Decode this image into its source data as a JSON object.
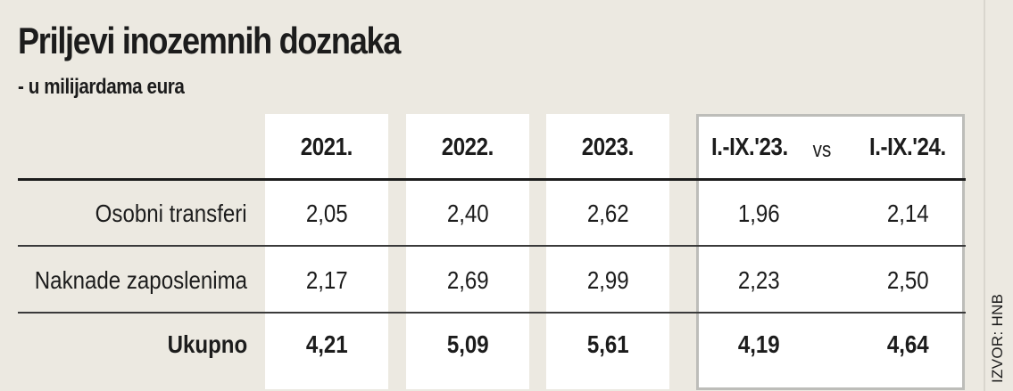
{
  "title": "Priljevi inozemnih doznaka",
  "subtitle": "- u milijardama eura",
  "columns": [
    "2021.",
    "2022.",
    "2023.",
    "I.-IX.'23.",
    "I.-IX.'24."
  ],
  "vs_label": "vs",
  "rows": [
    {
      "label": "Osobni transferi",
      "values": [
        "2,05",
        "2,40",
        "2,62",
        "1,96",
        "2,14"
      ]
    },
    {
      "label": "Naknade zaposlenima",
      "values": [
        "2,17",
        "2,69",
        "2,99",
        "2,23",
        "2,50"
      ]
    },
    {
      "label": "Ukupno",
      "values": [
        "4,21",
        "5,09",
        "5,61",
        "4,19",
        "4,64"
      ]
    }
  ],
  "source": "IZVOR: HNB"
}
